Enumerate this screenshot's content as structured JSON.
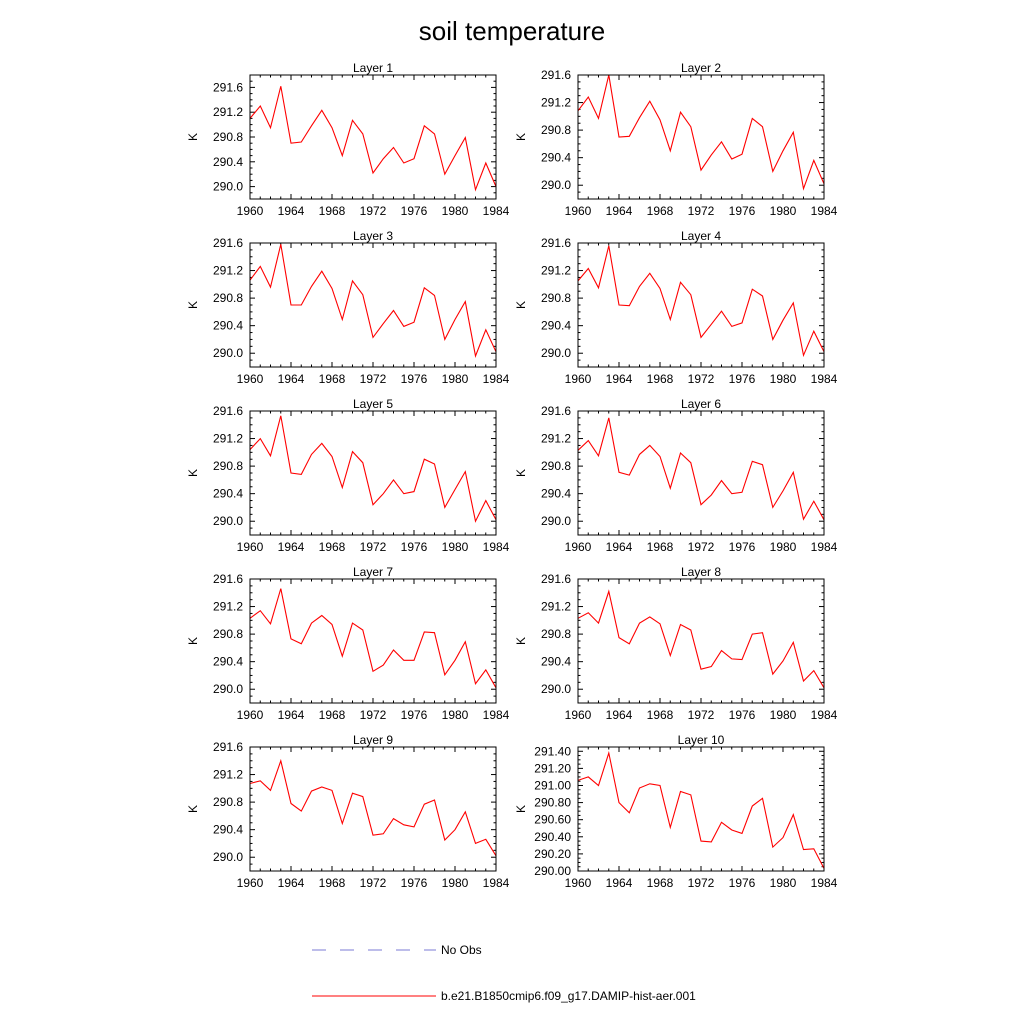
{
  "figure": {
    "title": "soil temperature",
    "legend": [
      {
        "label": "No Obs",
        "color": "#7b7bd6",
        "dash": "dashed"
      },
      {
        "label": "b.e21.B1850cmip6.f09_g17.DAMIP-hist-aer.001",
        "color": "#ff0000",
        "dash": "solid"
      }
    ]
  },
  "chart_data": [
    {
      "type": "line",
      "title": "Layer 1",
      "ylabel": "K",
      "xlim": [
        1960,
        1984
      ],
      "ylim": [
        289.8,
        291.8
      ],
      "xticks": [
        1960,
        1964,
        1968,
        1972,
        1976,
        1980,
        1984
      ],
      "yticks": [
        "290.0",
        "290.4",
        "290.8",
        "291.2",
        "291.6"
      ],
      "series": [
        {
          "color": "#ff0000",
          "x": [
            1960,
            1961,
            1962,
            1963,
            1964,
            1965,
            1966,
            1967,
            1968,
            1969,
            1970,
            1971,
            1972,
            1973,
            1974,
            1975,
            1976,
            1977,
            1978,
            1979,
            1980,
            1981,
            1982,
            1983,
            1984
          ],
          "values": [
            291.1,
            291.3,
            290.95,
            291.62,
            290.7,
            290.72,
            290.98,
            291.23,
            290.95,
            290.5,
            291.07,
            290.85,
            290.22,
            290.45,
            290.63,
            290.38,
            290.45,
            290.98,
            290.85,
            290.2,
            290.5,
            290.79,
            289.95,
            290.38,
            290.0
          ]
        }
      ]
    },
    {
      "type": "line",
      "title": "Layer 2",
      "ylabel": "K",
      "xlim": [
        1960,
        1984
      ],
      "ylim": [
        289.8,
        291.6
      ],
      "xticks": [
        1960,
        1964,
        1968,
        1972,
        1976,
        1980,
        1984
      ],
      "yticks": [
        "290.0",
        "290.4",
        "290.8",
        "291.2",
        "291.6"
      ],
      "series": [
        {
          "color": "#ff0000",
          "x": [
            1960,
            1961,
            1962,
            1963,
            1964,
            1965,
            1966,
            1967,
            1968,
            1969,
            1970,
            1971,
            1972,
            1973,
            1974,
            1975,
            1976,
            1977,
            1978,
            1979,
            1980,
            1981,
            1982,
            1983,
            1984
          ],
          "values": [
            291.08,
            291.28,
            290.97,
            291.6,
            290.7,
            290.71,
            290.98,
            291.22,
            290.95,
            290.5,
            291.06,
            290.85,
            290.22,
            290.44,
            290.63,
            290.38,
            290.45,
            290.97,
            290.85,
            290.2,
            290.5,
            290.77,
            289.95,
            290.36,
            290.02
          ]
        }
      ]
    },
    {
      "type": "line",
      "title": "Layer 3",
      "ylabel": "K",
      "xlim": [
        1960,
        1984
      ],
      "ylim": [
        289.8,
        291.6
      ],
      "xticks": [
        1960,
        1964,
        1968,
        1972,
        1976,
        1980,
        1984
      ],
      "yticks": [
        "290.0",
        "290.4",
        "290.8",
        "291.2",
        "291.6"
      ],
      "series": [
        {
          "color": "#ff0000",
          "x": [
            1960,
            1961,
            1962,
            1963,
            1964,
            1965,
            1966,
            1967,
            1968,
            1969,
            1970,
            1971,
            1972,
            1973,
            1974,
            1975,
            1976,
            1977,
            1978,
            1979,
            1980,
            1981,
            1982,
            1983,
            1984
          ],
          "values": [
            291.06,
            291.26,
            290.96,
            291.58,
            290.7,
            290.7,
            290.97,
            291.19,
            290.94,
            290.49,
            291.05,
            290.85,
            290.23,
            290.43,
            290.62,
            290.39,
            290.45,
            290.95,
            290.84,
            290.2,
            290.49,
            290.75,
            289.96,
            290.34,
            290.02
          ]
        }
      ]
    },
    {
      "type": "line",
      "title": "Layer 4",
      "ylabel": "K",
      "xlim": [
        1960,
        1984
      ],
      "ylim": [
        289.8,
        291.6
      ],
      "xticks": [
        1960,
        1964,
        1968,
        1972,
        1976,
        1980,
        1984
      ],
      "yticks": [
        "290.0",
        "290.4",
        "290.8",
        "291.2",
        "291.6"
      ],
      "series": [
        {
          "color": "#ff0000",
          "x": [
            1960,
            1961,
            1962,
            1963,
            1964,
            1965,
            1966,
            1967,
            1968,
            1969,
            1970,
            1971,
            1972,
            1973,
            1974,
            1975,
            1976,
            1977,
            1978,
            1979,
            1980,
            1981,
            1982,
            1983,
            1984
          ],
          "values": [
            291.05,
            291.23,
            290.95,
            291.56,
            290.7,
            290.69,
            290.97,
            291.16,
            290.94,
            290.49,
            291.03,
            290.85,
            290.23,
            290.42,
            290.61,
            290.39,
            290.44,
            290.93,
            290.83,
            290.2,
            290.48,
            290.73,
            289.97,
            290.32,
            290.02
          ]
        }
      ]
    },
    {
      "type": "line",
      "title": "Layer 5",
      "ylabel": "K",
      "xlim": [
        1960,
        1984
      ],
      "ylim": [
        289.8,
        291.6
      ],
      "xticks": [
        1960,
        1964,
        1968,
        1972,
        1976,
        1980,
        1984
      ],
      "yticks": [
        "290.0",
        "290.4",
        "290.8",
        "291.2",
        "291.6"
      ],
      "series": [
        {
          "color": "#ff0000",
          "x": [
            1960,
            1961,
            1962,
            1963,
            1964,
            1965,
            1966,
            1967,
            1968,
            1969,
            1970,
            1971,
            1972,
            1973,
            1974,
            1975,
            1976,
            1977,
            1978,
            1979,
            1980,
            1981,
            1982,
            1983,
            1984
          ],
          "values": [
            291.04,
            291.2,
            290.95,
            291.53,
            290.7,
            290.68,
            290.97,
            291.13,
            290.94,
            290.49,
            291.01,
            290.85,
            290.24,
            290.4,
            290.6,
            290.4,
            290.43,
            290.9,
            290.83,
            290.2,
            290.46,
            290.72,
            290.0,
            290.3,
            290.02
          ]
        }
      ]
    },
    {
      "type": "line",
      "title": "Layer 6",
      "ylabel": "K",
      "xlim": [
        1960,
        1984
      ],
      "ylim": [
        289.8,
        291.6
      ],
      "xticks": [
        1960,
        1964,
        1968,
        1972,
        1976,
        1980,
        1984
      ],
      "yticks": [
        "290.0",
        "290.4",
        "290.8",
        "291.2",
        "291.6"
      ],
      "series": [
        {
          "color": "#ff0000",
          "x": [
            1960,
            1961,
            1962,
            1963,
            1964,
            1965,
            1966,
            1967,
            1968,
            1969,
            1970,
            1971,
            1972,
            1973,
            1974,
            1975,
            1976,
            1977,
            1978,
            1979,
            1980,
            1981,
            1982,
            1983,
            1984
          ],
          "values": [
            291.03,
            291.17,
            290.95,
            291.5,
            290.71,
            290.67,
            290.97,
            291.1,
            290.94,
            290.48,
            290.99,
            290.85,
            290.24,
            290.38,
            290.59,
            290.4,
            290.42,
            290.87,
            290.82,
            290.2,
            290.44,
            290.71,
            290.03,
            290.29,
            290.02
          ]
        }
      ]
    },
    {
      "type": "line",
      "title": "Layer 7",
      "ylabel": "K",
      "xlim": [
        1960,
        1984
      ],
      "ylim": [
        289.8,
        291.6
      ],
      "xticks": [
        1960,
        1964,
        1968,
        1972,
        1976,
        1980,
        1984
      ],
      "yticks": [
        "290.0",
        "290.4",
        "290.8",
        "291.2",
        "291.6"
      ],
      "series": [
        {
          "color": "#ff0000",
          "x": [
            1960,
            1961,
            1962,
            1963,
            1964,
            1965,
            1966,
            1967,
            1968,
            1969,
            1970,
            1971,
            1972,
            1973,
            1974,
            1975,
            1976,
            1977,
            1978,
            1979,
            1980,
            1981,
            1982,
            1983,
            1984
          ],
          "values": [
            291.03,
            291.14,
            290.95,
            291.46,
            290.73,
            290.66,
            290.96,
            291.07,
            290.94,
            290.48,
            290.96,
            290.86,
            290.26,
            290.35,
            290.57,
            290.42,
            290.42,
            290.83,
            290.82,
            290.21,
            290.42,
            290.69,
            290.08,
            290.28,
            290.02
          ]
        }
      ]
    },
    {
      "type": "line",
      "title": "Layer 8",
      "ylabel": "K",
      "xlim": [
        1960,
        1984
      ],
      "ylim": [
        289.8,
        291.6
      ],
      "xticks": [
        1960,
        1964,
        1968,
        1972,
        1976,
        1980,
        1984
      ],
      "yticks": [
        "290.0",
        "290.4",
        "290.8",
        "291.2",
        "291.6"
      ],
      "series": [
        {
          "color": "#ff0000",
          "x": [
            1960,
            1961,
            1962,
            1963,
            1964,
            1965,
            1966,
            1967,
            1968,
            1969,
            1970,
            1971,
            1972,
            1973,
            1974,
            1975,
            1976,
            1977,
            1978,
            1979,
            1980,
            1981,
            1982,
            1983,
            1984
          ],
          "values": [
            291.03,
            291.11,
            290.96,
            291.42,
            290.75,
            290.66,
            290.96,
            291.05,
            290.95,
            290.49,
            290.94,
            290.86,
            290.29,
            290.33,
            290.56,
            290.44,
            290.43,
            290.8,
            290.82,
            290.22,
            290.41,
            290.68,
            290.12,
            290.27,
            290.02
          ]
        }
      ]
    },
    {
      "type": "line",
      "title": "Layer 9",
      "ylabel": "K",
      "xlim": [
        1960,
        1984
      ],
      "ylim": [
        289.8,
        291.6
      ],
      "xticks": [
        1960,
        1964,
        1968,
        1972,
        1976,
        1980,
        1984
      ],
      "yticks": [
        "290.0",
        "290.4",
        "290.8",
        "291.2",
        "291.6"
      ],
      "series": [
        {
          "color": "#ff0000",
          "x": [
            1960,
            1961,
            1962,
            1963,
            1964,
            1965,
            1966,
            1967,
            1968,
            1969,
            1970,
            1971,
            1972,
            1973,
            1974,
            1975,
            1976,
            1977,
            1978,
            1979,
            1980,
            1981,
            1982,
            1983,
            1984
          ],
          "values": [
            291.07,
            291.11,
            290.97,
            291.4,
            290.78,
            290.67,
            290.96,
            291.02,
            290.97,
            290.49,
            290.93,
            290.88,
            290.32,
            290.34,
            290.56,
            290.47,
            290.44,
            290.77,
            290.83,
            290.25,
            290.4,
            290.66,
            290.2,
            290.26,
            290.02
          ]
        }
      ]
    },
    {
      "type": "line",
      "title": "Layer 10",
      "ylabel": "K",
      "xlim": [
        1960,
        1984
      ],
      "ylim": [
        290.0,
        291.45
      ],
      "xticks": [
        1960,
        1964,
        1968,
        1972,
        1976,
        1980,
        1984
      ],
      "yticks": [
        "290.00",
        "290.20",
        "290.40",
        "290.60",
        "290.80",
        "291.00",
        "291.20",
        "291.40"
      ],
      "series": [
        {
          "color": "#ff0000",
          "x": [
            1960,
            1961,
            1962,
            1963,
            1964,
            1965,
            1966,
            1967,
            1968,
            1969,
            1970,
            1971,
            1972,
            1973,
            1974,
            1975,
            1976,
            1977,
            1978,
            1979,
            1980,
            1981,
            1982,
            1983,
            1984
          ],
          "values": [
            291.06,
            291.1,
            291.0,
            291.38,
            290.8,
            290.68,
            290.97,
            291.02,
            291.0,
            290.51,
            290.93,
            290.89,
            290.35,
            290.34,
            290.57,
            290.48,
            290.44,
            290.76,
            290.85,
            290.28,
            290.39,
            290.66,
            290.25,
            290.26,
            290.03
          ]
        }
      ]
    }
  ]
}
